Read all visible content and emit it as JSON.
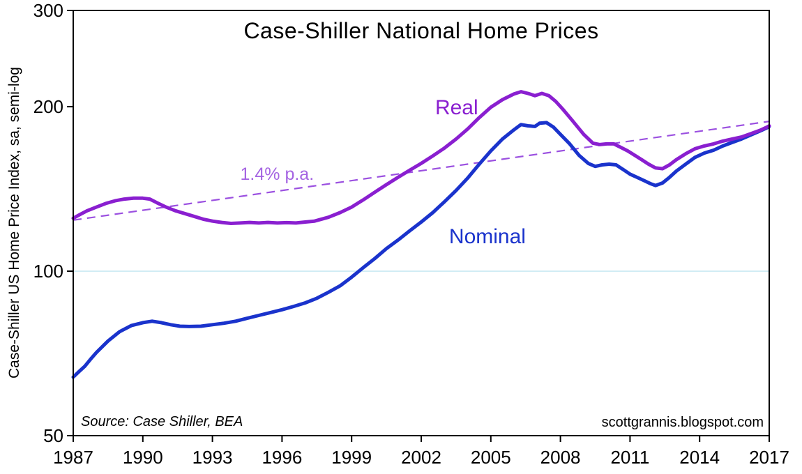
{
  "chart_data": {
    "type": "line",
    "title": "Case-Shiller National Home Prices",
    "ylabel": "Case-Shiller US Home Price Index, sa, semi-log",
    "xlabel": "",
    "source_note": "Source: Case Shiller, BEA",
    "watermark": "scottgrannis.blogspot.com",
    "x_axis": {
      "min": 1987,
      "max": 2017,
      "ticks": [
        1987,
        1990,
        1993,
        1996,
        1999,
        2002,
        2005,
        2008,
        2011,
        2014,
        2017
      ]
    },
    "y_axis": {
      "scale": "log",
      "min": 50,
      "max": 300,
      "ticks": [
        50,
        100,
        200,
        300
      ],
      "gridlines": [
        100
      ],
      "gridline_color": "#c9e9f2"
    },
    "axis_color": "#000000",
    "series": [
      {
        "name": "Nominal",
        "color": "#1a33cc",
        "label": {
          "text": "Nominal",
          "x": 2003.2,
          "y": 115
        },
        "points": [
          [
            1987,
            64
          ],
          [
            1987.25,
            65.5
          ],
          [
            1987.5,
            67
          ],
          [
            1987.75,
            69
          ],
          [
            1988,
            71
          ],
          [
            1988.5,
            74.5
          ],
          [
            1989,
            77.5
          ],
          [
            1989.5,
            79.5
          ],
          [
            1990,
            80.5
          ],
          [
            1990.4,
            81
          ],
          [
            1990.8,
            80.5
          ],
          [
            1991.2,
            79.8
          ],
          [
            1991.6,
            79.3
          ],
          [
            1992,
            79.2
          ],
          [
            1992.5,
            79.3
          ],
          [
            1993,
            79.8
          ],
          [
            1993.5,
            80.3
          ],
          [
            1994,
            81
          ],
          [
            1994.5,
            82
          ],
          [
            1995,
            83
          ],
          [
            1995.5,
            84
          ],
          [
            1996,
            85
          ],
          [
            1996.5,
            86.2
          ],
          [
            1997,
            87.5
          ],
          [
            1997.5,
            89.2
          ],
          [
            1998,
            91.5
          ],
          [
            1998.5,
            94
          ],
          [
            1999,
            97.5
          ],
          [
            1999.5,
            101.5
          ],
          [
            2000,
            105.5
          ],
          [
            2000.5,
            110
          ],
          [
            2001,
            114
          ],
          [
            2001.5,
            118.5
          ],
          [
            2002,
            123
          ],
          [
            2002.5,
            128
          ],
          [
            2003,
            134
          ],
          [
            2003.5,
            140.5
          ],
          [
            2004,
            148
          ],
          [
            2004.5,
            157
          ],
          [
            2005,
            166
          ],
          [
            2005.5,
            174.5
          ],
          [
            2006,
            181.5
          ],
          [
            2006.3,
            185.5
          ],
          [
            2006.6,
            184.5
          ],
          [
            2006.9,
            184
          ],
          [
            2007.1,
            186.5
          ],
          [
            2007.4,
            187
          ],
          [
            2007.7,
            183.5
          ],
          [
            2008,
            178
          ],
          [
            2008.4,
            171
          ],
          [
            2008.8,
            163
          ],
          [
            2009.2,
            157.5
          ],
          [
            2009.5,
            155.5
          ],
          [
            2009.8,
            156.5
          ],
          [
            2010.1,
            157
          ],
          [
            2010.4,
            156.5
          ],
          [
            2010.7,
            153.5
          ],
          [
            2011,
            150.5
          ],
          [
            2011.3,
            148.5
          ],
          [
            2011.6,
            146.5
          ],
          [
            2011.9,
            144.5
          ],
          [
            2012.1,
            143.5
          ],
          [
            2012.4,
            145
          ],
          [
            2012.7,
            148.5
          ],
          [
            2013,
            152.5
          ],
          [
            2013.4,
            157
          ],
          [
            2013.8,
            161.5
          ],
          [
            2014.2,
            164.5
          ],
          [
            2014.6,
            166.5
          ],
          [
            2015,
            169.5
          ],
          [
            2015.4,
            172
          ],
          [
            2015.8,
            174.5
          ],
          [
            2016.2,
            177.5
          ],
          [
            2016.6,
            180.5
          ],
          [
            2016.9,
            183
          ],
          [
            2017,
            184
          ]
        ]
      },
      {
        "name": "Real",
        "color": "#8a1fd0",
        "label": {
          "text": "Real",
          "x": 2002.6,
          "y": 198
        },
        "points": [
          [
            1987,
            125
          ],
          [
            1987.3,
            127
          ],
          [
            1987.6,
            129
          ],
          [
            1988,
            131
          ],
          [
            1988.4,
            133
          ],
          [
            1988.8,
            134.5
          ],
          [
            1989.2,
            135.5
          ],
          [
            1989.6,
            136
          ],
          [
            1990,
            136
          ],
          [
            1990.3,
            135.5
          ],
          [
            1990.6,
            133.5
          ],
          [
            1991,
            131
          ],
          [
            1991.4,
            129
          ],
          [
            1991.8,
            127.5
          ],
          [
            1992.2,
            126
          ],
          [
            1992.6,
            124.5
          ],
          [
            1993,
            123.5
          ],
          [
            1993.4,
            122.8
          ],
          [
            1993.8,
            122.3
          ],
          [
            1994.2,
            122.5
          ],
          [
            1994.6,
            122.8
          ],
          [
            1995,
            122.5
          ],
          [
            1995.4,
            122.8
          ],
          [
            1995.8,
            122.5
          ],
          [
            1996.2,
            122.7
          ],
          [
            1996.6,
            122.5
          ],
          [
            1997,
            123
          ],
          [
            1997.4,
            123.5
          ],
          [
            1998,
            125.5
          ],
          [
            1998.5,
            128
          ],
          [
            1999,
            131
          ],
          [
            1999.5,
            135
          ],
          [
            2000,
            139.5
          ],
          [
            2000.5,
            144
          ],
          [
            2001,
            148.5
          ],
          [
            2001.5,
            153
          ],
          [
            2002,
            157.5
          ],
          [
            2002.5,
            162.5
          ],
          [
            2003,
            168
          ],
          [
            2003.5,
            174.5
          ],
          [
            2004,
            182
          ],
          [
            2004.5,
            191
          ],
          [
            2005,
            199.5
          ],
          [
            2005.5,
            206
          ],
          [
            2006,
            211
          ],
          [
            2006.3,
            213
          ],
          [
            2006.6,
            211.5
          ],
          [
            2006.9,
            209.5
          ],
          [
            2007.2,
            211.5
          ],
          [
            2007.5,
            209.5
          ],
          [
            2007.8,
            204.5
          ],
          [
            2008.1,
            198
          ],
          [
            2008.5,
            189
          ],
          [
            2009,
            178
          ],
          [
            2009.4,
            171.5
          ],
          [
            2009.7,
            170.5
          ],
          [
            2010,
            171
          ],
          [
            2010.3,
            171
          ],
          [
            2010.6,
            168.5
          ],
          [
            2010.9,
            166
          ],
          [
            2011.2,
            163
          ],
          [
            2011.5,
            160
          ],
          [
            2011.8,
            157
          ],
          [
            2012.1,
            154.5
          ],
          [
            2012.4,
            154
          ],
          [
            2012.7,
            156.5
          ],
          [
            2013,
            160
          ],
          [
            2013.4,
            164
          ],
          [
            2013.8,
            167.5
          ],
          [
            2014.2,
            169.5
          ],
          [
            2014.6,
            171
          ],
          [
            2015,
            173
          ],
          [
            2015.4,
            174.5
          ],
          [
            2015.8,
            176
          ],
          [
            2016.2,
            178.5
          ],
          [
            2016.6,
            181
          ],
          [
            2016.9,
            183.5
          ],
          [
            2017,
            184.5
          ]
        ]
      }
    ],
    "trend_line": {
      "label": {
        "text": "1.4% p.a.",
        "x": 1994.2,
        "y": 150
      },
      "color": "#9b50e0",
      "label_color": "#a564e2",
      "dash": [
        12,
        8
      ],
      "points": [
        [
          1987,
          124
        ],
        [
          2017,
          188
        ]
      ]
    }
  }
}
